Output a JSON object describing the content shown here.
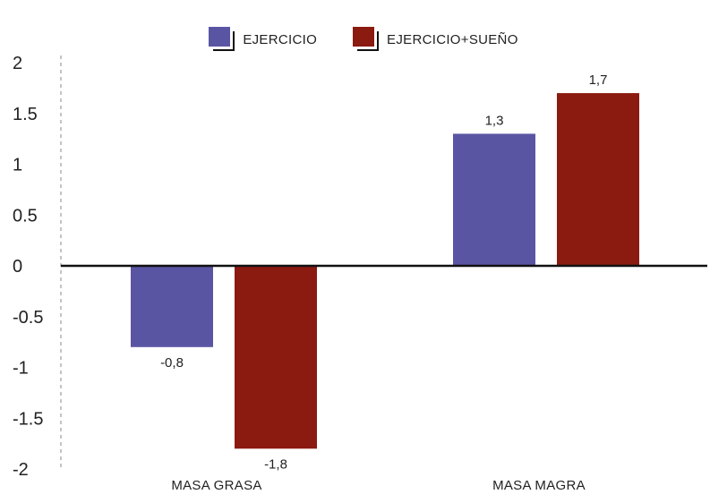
{
  "chart_data": {
    "type": "bar",
    "categories": [
      "MASA GRASA",
      "MASA MAGRA"
    ],
    "series": [
      {
        "name": "EJERCICIO",
        "values": [
          -0.8,
          1.3
        ],
        "labels": [
          "-0,8",
          "1,3"
        ],
        "color": "#5a55a3"
      },
      {
        "name": "EJERCICIO+SUEÑO",
        "values": [
          -1.8,
          1.7
        ],
        "labels": [
          "-1,8",
          "1,7"
        ],
        "color": "#8b1a10"
      }
    ],
    "yticks": [
      "2",
      "1.5",
      "1",
      "0.5",
      "0",
      "-0.5",
      "-1",
      "-1.5",
      "-2"
    ],
    "ylim": [
      -2,
      2
    ],
    "legend_position": "top-center",
    "grid": false
  }
}
